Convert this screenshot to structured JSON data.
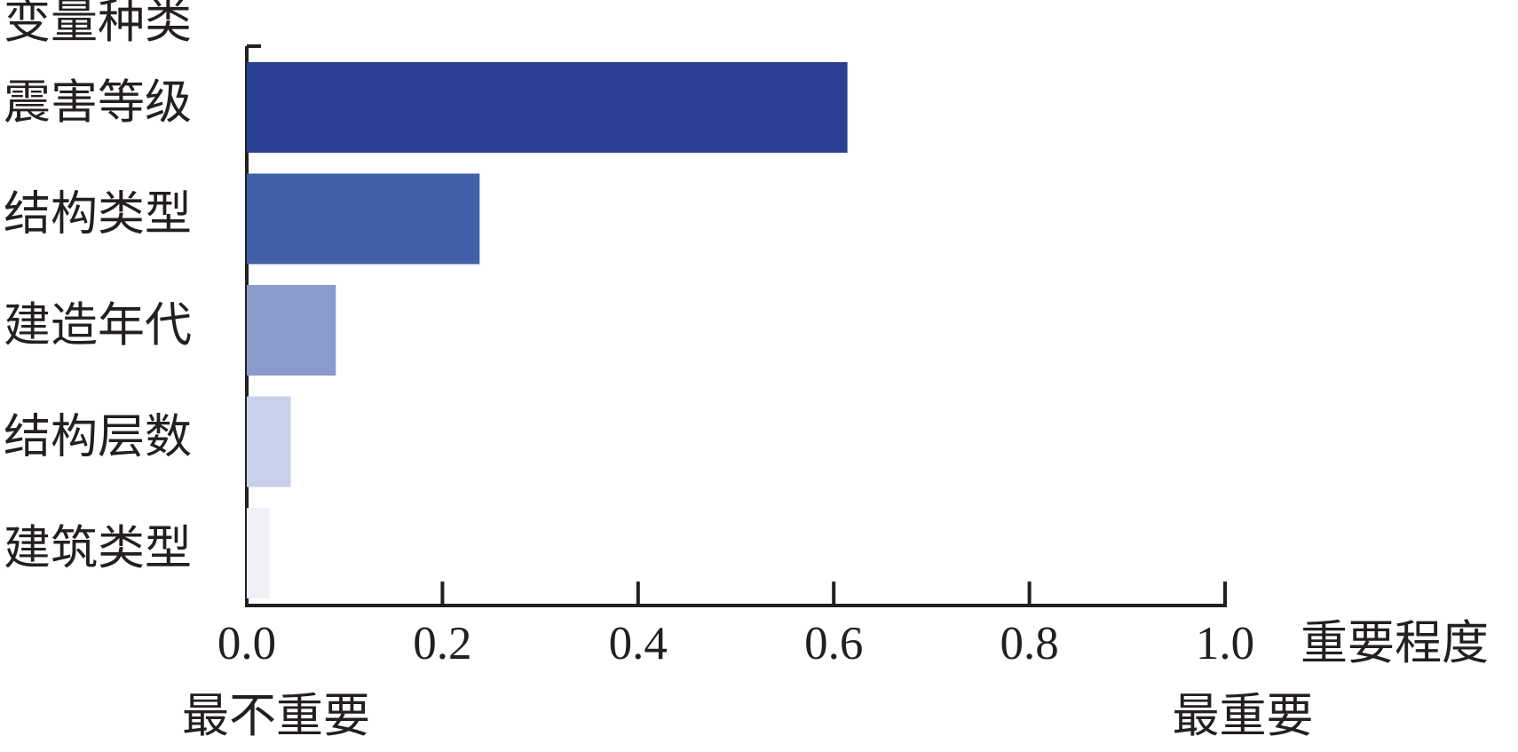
{
  "chart_data": {
    "type": "bar",
    "orientation": "horizontal",
    "y_label": "变量种类",
    "x_label": "重要程度",
    "annotations": [
      "最不重要",
      "最重要"
    ],
    "categories": [
      "震害等级",
      "结构类型",
      "建造年代",
      "结构层数",
      "建筑类型"
    ],
    "values": [
      0.614,
      0.238,
      0.091,
      0.045,
      0.023
    ],
    "colors": [
      "#283f93",
      "#4060a8",
      "#8a9acb",
      "#c8d0ea",
      "#eff0f8"
    ],
    "xlim": [
      0,
      1
    ],
    "xticks": [
      {
        "value": 0,
        "label": "0.0"
      },
      0.2,
      0.4,
      0.6,
      0.8,
      {
        "value": 1,
        "label": "1.0"
      }
    ],
    "grid": false
  }
}
